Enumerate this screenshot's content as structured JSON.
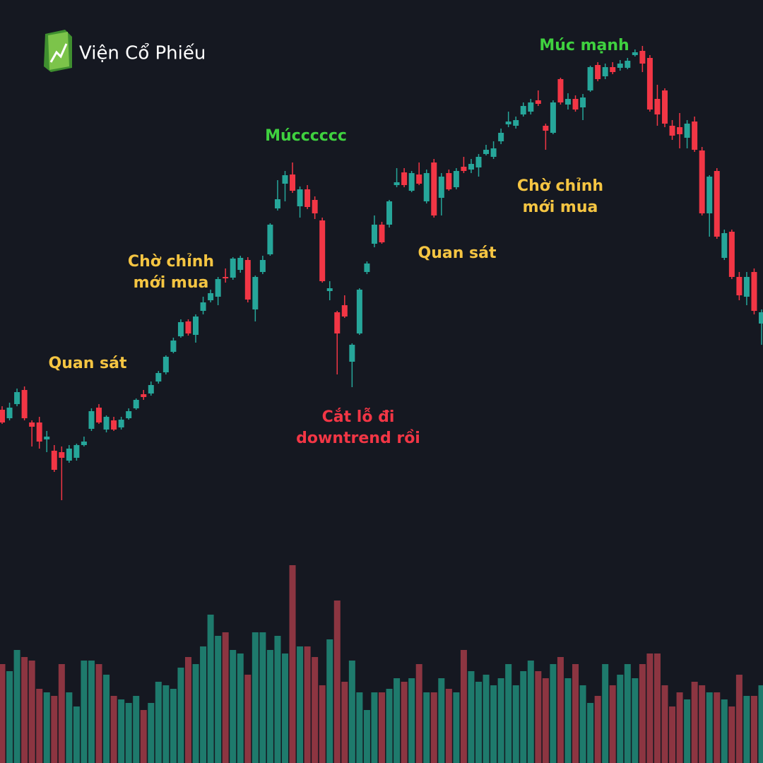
{
  "brand": "Viện Cổ Phiếu",
  "chart_data": {
    "type": "candlestick",
    "up_color": "#26a69a",
    "down_color": "#f23645",
    "volume_up_color": "#1e7a6c",
    "volume_down_color": "#8c3541",
    "ylim": [
      0,
      1080
    ],
    "vlim": [
      0,
      400
    ],
    "open": [
      500,
      488,
      508,
      528,
      482,
      482,
      458,
      442,
      440,
      428,
      432,
      450,
      473,
      503,
      472,
      485,
      475,
      488,
      502,
      522,
      523,
      540,
      553,
      582,
      604,
      625,
      606,
      640,
      655,
      660,
      688,
      687,
      698,
      712,
      642,
      695,
      720,
      785,
      820,
      833,
      788,
      812,
      797,
      768,
      668,
      638,
      648,
      568,
      608,
      695,
      735,
      762,
      762,
      818,
      836,
      810,
      833,
      795,
      850,
      800,
      835,
      815,
      844,
      840,
      843,
      862,
      858,
      880,
      904,
      902,
      918,
      922,
      938,
      902,
      892,
      968,
      932,
      940,
      928,
      952,
      988,
      972,
      985,
      984,
      984,
      1002,
      1008,
      998,
      940,
      952,
      902,
      900,
      885,
      908,
      867,
      778,
      838,
      715,
      752,
      688,
      660,
      695,
      622
    ],
    "high": [
      505,
      510,
      530,
      533,
      485,
      490,
      470,
      450,
      448,
      450,
      452,
      462,
      502,
      508,
      492,
      490,
      490,
      502,
      516,
      528,
      540,
      555,
      577,
      602,
      628,
      628,
      635,
      660,
      670,
      688,
      700,
      716,
      718,
      716,
      690,
      718,
      764,
      825,
      838,
      850,
      816,
      818,
      802,
      772,
      682,
      640,
      662,
      594,
      672,
      710,
      775,
      766,
      797,
      842,
      842,
      838,
      850,
      840,
      855,
      835,
      840,
      842,
      858,
      855,
      862,
      875,
      880,
      898,
      922,
      915,
      935,
      940,
      952,
      905,
      938,
      970,
      948,
      945,
      947,
      987,
      992,
      990,
      992,
      995,
      998,
      1010,
      1015,
      1002,
      960,
      955,
      910,
      920,
      910,
      915,
      872,
      832,
      842,
      755,
      755,
      695,
      695,
      700,
      642
    ],
    "low": [
      480,
      485,
      505,
      485,
      448,
      445,
      440,
      412,
      372,
      425,
      428,
      448,
      470,
      480,
      468,
      470,
      472,
      486,
      500,
      514,
      520,
      537,
      550,
      580,
      602,
      605,
      595,
      635,
      652,
      648,
      680,
      684,
      694,
      652,
      625,
      692,
      718,
      782,
      795,
      807,
      772,
      784,
      770,
      680,
      655,
      550,
      630,
      532,
      606,
      692,
      730,
      735,
      758,
      815,
      815,
      808,
      818,
      792,
      772,
      775,
      810,
      812,
      835,
      835,
      830,
      860,
      855,
      876,
      900,
      898,
      915,
      918,
      930,
      868,
      890,
      932,
      925,
      922,
      910,
      950,
      965,
      968,
      975,
      980,
      982,
      1000,
      978,
      922,
      902,
      900,
      882,
      870,
      870,
      865,
      775,
      745,
      742,
      712,
      685,
      655,
      648,
      635,
      592
    ],
    "close": [
      482,
      503,
      525,
      488,
      476,
      455,
      462,
      415,
      432,
      445,
      450,
      455,
      498,
      482,
      490,
      472,
      486,
      498,
      514,
      518,
      535,
      552,
      575,
      598,
      624,
      608,
      632,
      652,
      665,
      685,
      686,
      714,
      715,
      656,
      688,
      712,
      762,
      798,
      832,
      810,
      812,
      787,
      778,
      682,
      672,
      608,
      632,
      592,
      670,
      707,
      762,
      737,
      795,
      822,
      818,
      835,
      820,
      835,
      775,
      830,
      812,
      838,
      838,
      848,
      858,
      868,
      870,
      892,
      908,
      910,
      930,
      935,
      933,
      895,
      935,
      935,
      940,
      925,
      942,
      985,
      968,
      985,
      978,
      990,
      994,
      1006,
      990,
      925,
      918,
      905,
      888,
      890,
      905,
      868,
      778,
      830,
      745,
      750,
      688,
      662,
      688,
      640,
      638
    ],
    "volume": [
      140,
      130,
      160,
      150,
      145,
      105,
      100,
      95,
      140,
      100,
      80,
      145,
      145,
      140,
      125,
      95,
      90,
      85,
      95,
      75,
      85,
      115,
      110,
      105,
      135,
      150,
      140,
      165,
      210,
      180,
      185,
      160,
      155,
      125,
      185,
      185,
      160,
      180,
      155,
      280,
      165,
      165,
      150,
      110,
      175,
      230,
      115,
      145,
      100,
      75,
      100,
      100,
      105,
      120,
      115,
      120,
      140,
      100,
      100,
      120,
      105,
      100,
      160,
      130,
      115,
      125,
      110,
      120,
      140,
      110,
      130,
      145,
      130,
      120,
      140,
      150,
      120,
      140,
      110,
      85,
      95,
      140,
      110,
      125,
      140,
      120,
      140,
      155,
      155,
      110,
      80,
      100,
      90,
      115,
      110,
      100,
      100,
      90,
      80,
      125,
      95,
      95,
      110
    ],
    "annotations": [
      {
        "lines": [
          "Quan sát"
        ],
        "color": "#f5c542"
      },
      {
        "lines": [
          "Chờ chỉnh",
          "mới mua"
        ],
        "color": "#f5c542"
      },
      {
        "lines": [
          "Múcccccc"
        ],
        "color": "#3fd13f"
      },
      {
        "lines": [
          "Cắt lỗ đi",
          "downtrend rồi"
        ],
        "color": "#f23645"
      },
      {
        "lines": [
          "Quan sát"
        ],
        "color": "#f5c542"
      },
      {
        "lines": [
          "Chờ chỉnh",
          "mới mua"
        ],
        "color": "#f5c542"
      },
      {
        "lines": [
          "Múc mạnh"
        ],
        "color": "#3fd13f"
      }
    ]
  }
}
